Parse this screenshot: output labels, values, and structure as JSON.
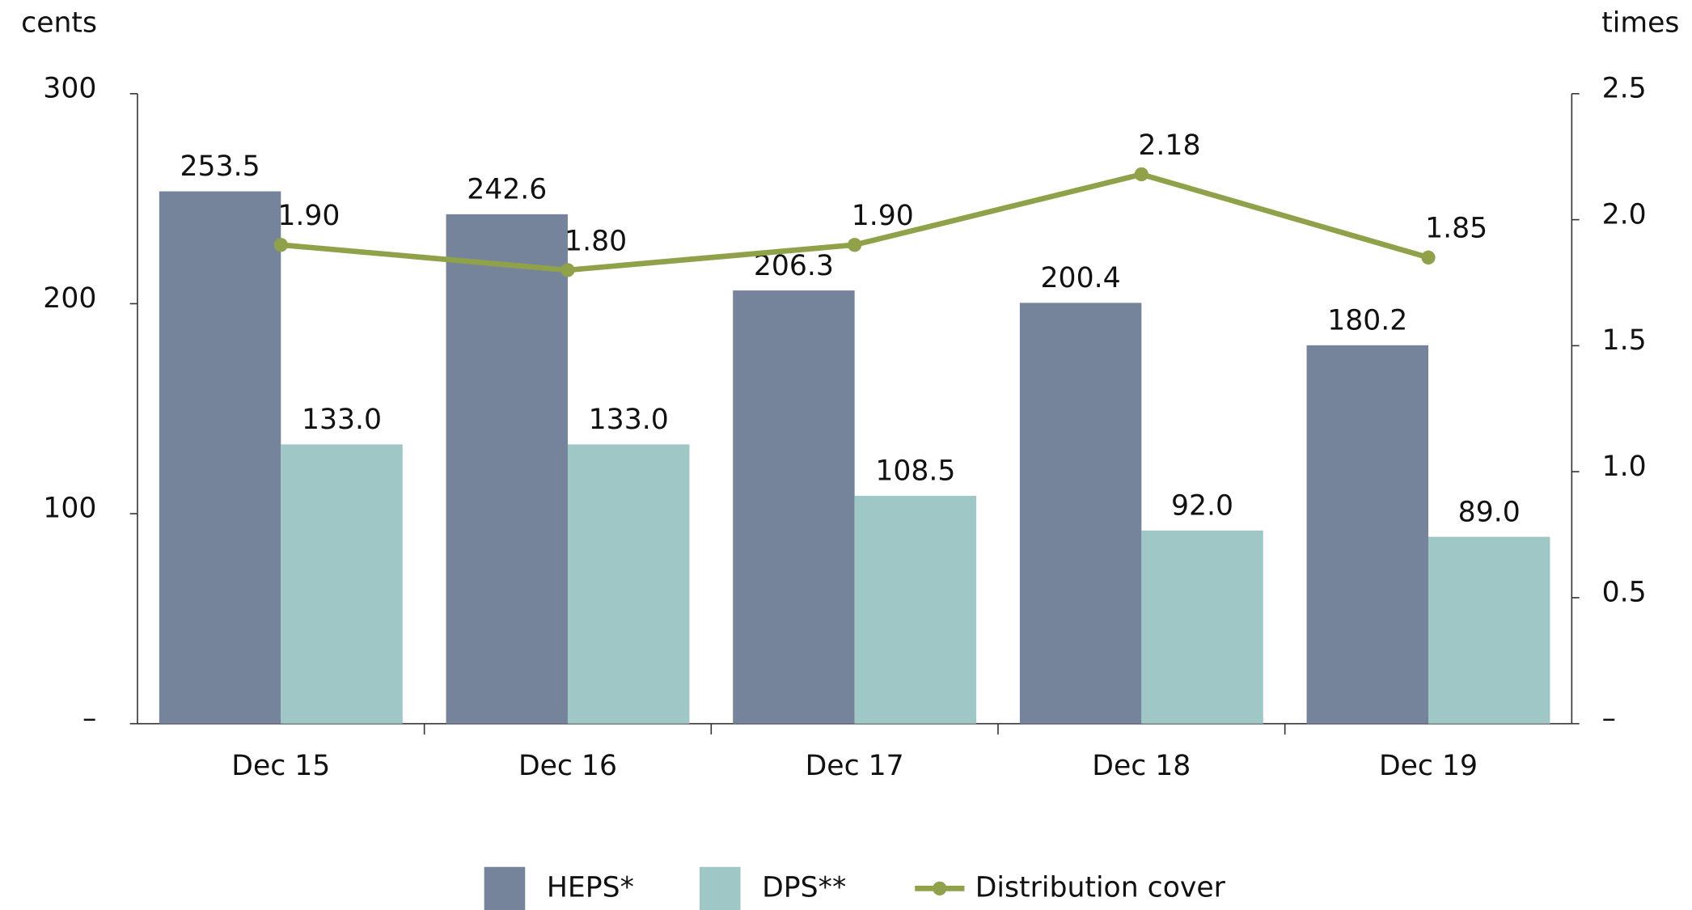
{
  "chart_data": {
    "type": "bar",
    "y_label": "cents",
    "y2_label": "times",
    "categories": [
      "Dec 15",
      "Dec 16",
      "Dec 17",
      "Dec 18",
      "Dec 19"
    ],
    "series": [
      {
        "name": "HEPS*",
        "color": "#75849b",
        "type": "bar",
        "values": [
          253.5,
          242.6,
          206.3,
          200.4,
          180.2
        ]
      },
      {
        "name": "DPS**",
        "color": "#9fc7c5",
        "type": "bar",
        "values": [
          133,
          133,
          108.5,
          92,
          89
        ],
        "value_labels": [
          "133.0",
          "133.0",
          "108.5",
          "92.0",
          "89.0"
        ]
      },
      {
        "name": "Distribution cover",
        "color": "#8fa24a",
        "type": "line",
        "axis": "y2",
        "values": [
          1.9,
          1.8,
          1.9,
          2.18,
          1.85
        ],
        "value_labels": [
          "1.90",
          "1.80",
          "1.90",
          "2.18",
          "1.85"
        ]
      }
    ],
    "ylim": [
      0,
      300
    ],
    "yticks": [
      {
        "value": 0,
        "label": "–"
      },
      100,
      200,
      300
    ],
    "y2lim": [
      0,
      2.5
    ],
    "y2ticks": [
      {
        "value": 0,
        "label": "–"
      },
      0.5,
      {
        "value": 1,
        "label": "1.0"
      },
      1.5,
      {
        "value": 2,
        "label": "2.0"
      },
      2.5
    ],
    "legend": "bottom"
  }
}
